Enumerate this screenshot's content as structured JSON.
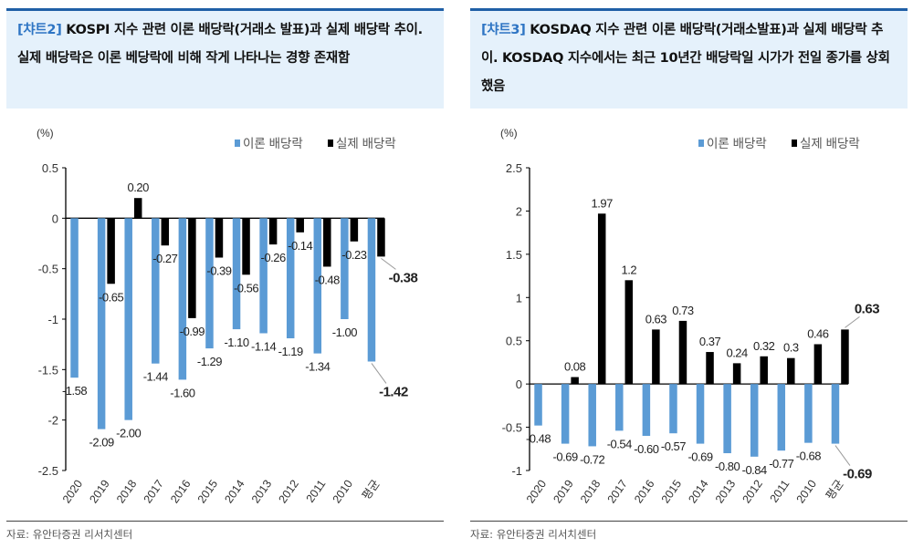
{
  "panels": [
    {
      "header_tag": "[챠트2]",
      "header_text": " KOSPI 지수 관련 이론 배당락(거래소 발표)과 실제 배당락 추이. 실제 배당락은 이론 베당락에 비해 작게 나타나는 경향 존재함",
      "source": "자료: 유안타증권 리서치센터"
    },
    {
      "header_tag": "[챠트3]",
      "header_text": " KOSDAQ 지수 관련 이론 배당락(거래소발표)과 실제 배당락 추이. KOSDAQ 지수에서는 최근 10년간 배당락일 시가가 전일 종가를 상회했음",
      "source": "자료: 유안타증권 리서치센터"
    }
  ],
  "chart_data": [
    {
      "type": "bar",
      "unit_label": "(%)",
      "ylim": [
        -2.5,
        0.5
      ],
      "yticks": [
        "0.5",
        "0",
        "-0.5",
        "-1",
        "-1.5",
        "-2",
        "-2.5"
      ],
      "ytick_values": [
        0.5,
        0,
        -0.5,
        -1,
        -1.5,
        -2,
        -2.5
      ],
      "legend_position": "top-right",
      "categories": [
        "2020",
        "2019",
        "2018",
        "2017",
        "2016",
        "2015",
        "2014",
        "2013",
        "2012",
        "2011",
        "2010",
        "평균"
      ],
      "series": [
        {
          "name": "이론 배당락",
          "color": "#5b9bd5",
          "values": [
            -1.58,
            -2.09,
            -2.0,
            -1.44,
            -1.6,
            -1.29,
            -1.1,
            -1.14,
            -1.19,
            -1.34,
            -1.0,
            -1.42
          ],
          "labels": [
            "-1.58",
            "-2.09",
            "-2.00",
            "-1.44",
            "-1.60",
            "-1.29",
            "-1.10",
            "-1.14",
            "-1.19",
            "-1.34",
            "-1.00",
            "-1.42"
          ]
        },
        {
          "name": "실제 배당락",
          "color": "#000000",
          "values": [
            null,
            -0.65,
            0.2,
            -0.27,
            -0.99,
            -0.39,
            -0.56,
            -0.26,
            -0.14,
            -0.48,
            -0.23,
            -0.38
          ],
          "labels": [
            "",
            "-0.65",
            "0.20",
            "-0.27",
            "-0.99",
            "-0.39",
            "-0.56",
            "-0.26",
            "-0.14",
            "-0.48",
            "-0.23",
            "-0.38"
          ]
        }
      ]
    },
    {
      "type": "bar",
      "unit_label": "(%)",
      "ylim": [
        -1,
        2.5
      ],
      "yticks": [
        "2.5",
        "2",
        "1.5",
        "1",
        "0.5",
        "0",
        "-0.5",
        "-1"
      ],
      "ytick_values": [
        2.5,
        2,
        1.5,
        1,
        0.5,
        0,
        -0.5,
        -1
      ],
      "legend_position": "top-right",
      "categories": [
        "2020",
        "2019",
        "2018",
        "2017",
        "2016",
        "2015",
        "2014",
        "2013",
        "2012",
        "2011",
        "2010",
        "평균"
      ],
      "series": [
        {
          "name": "이론 배당락",
          "color": "#5b9bd5",
          "values": [
            -0.48,
            -0.69,
            -0.72,
            -0.54,
            -0.6,
            -0.57,
            -0.69,
            -0.8,
            -0.84,
            -0.77,
            -0.68,
            -0.69
          ],
          "labels": [
            "-0.48",
            "-0.69",
            "-0.72",
            "-0.54",
            "-0.60",
            "-0.57",
            "-0.69",
            "-0.80",
            "-0.84",
            "-0.77",
            "-0.68",
            "-0.69"
          ]
        },
        {
          "name": "실제 배당락",
          "color": "#000000",
          "values": [
            null,
            0.08,
            1.97,
            1.2,
            0.63,
            0.73,
            0.37,
            0.24,
            0.32,
            0.3,
            0.46,
            0.63
          ],
          "labels": [
            "",
            "0.08",
            "1.97",
            "1.2",
            "0.63",
            "0.73",
            "0.37",
            "0.24",
            "0.32",
            "0.3",
            "0.46",
            "0.63"
          ]
        }
      ]
    }
  ]
}
